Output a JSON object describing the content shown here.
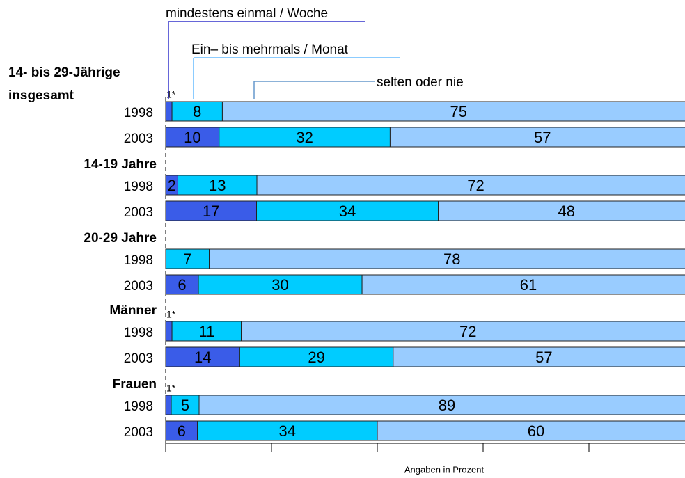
{
  "chart_data": {
    "type": "bar",
    "orientation": "horizontal",
    "stack": "percent",
    "x_label": "Angaben in Prozent",
    "groups": [
      [
        "14- bis 29-Jährige",
        "insgesamt"
      ],
      [
        "14-19 Jahre"
      ],
      [
        "20-29 Jahre"
      ],
      [
        "Männer"
      ],
      [
        "Frauen"
      ]
    ],
    "categories": [
      "1998",
      "2003",
      "1998",
      "2003",
      "1998",
      "2003",
      "1998",
      "2003",
      "1998",
      "2003"
    ],
    "series": [
      {
        "name": "mindestens einmal / Woche",
        "color": "#3a5ce8",
        "line_color": "#3333cc",
        "values": [
          1,
          10,
          2,
          17,
          null,
          6,
          1,
          14,
          1,
          6
        ],
        "value_labels": [
          "1*",
          "10",
          "2",
          "17",
          null,
          "6",
          "1*",
          "14",
          "1*",
          "6"
        ]
      },
      {
        "name": "Ein– bis mehrmals / Monat",
        "color": "#00ccff",
        "line_color": "#66bbff",
        "values": [
          8,
          32,
          13,
          34,
          7,
          30,
          11,
          29,
          5,
          34
        ]
      },
      {
        "name": "selten oder nie",
        "color": "#99ccff",
        "line_color": "#6699cc",
        "values": [
          75,
          57,
          72,
          48,
          78,
          61,
          72,
          57,
          89,
          60
        ]
      }
    ],
    "xlim": [
      0,
      100
    ],
    "xticks": [
      0,
      20,
      40,
      60,
      80,
      100
    ]
  }
}
